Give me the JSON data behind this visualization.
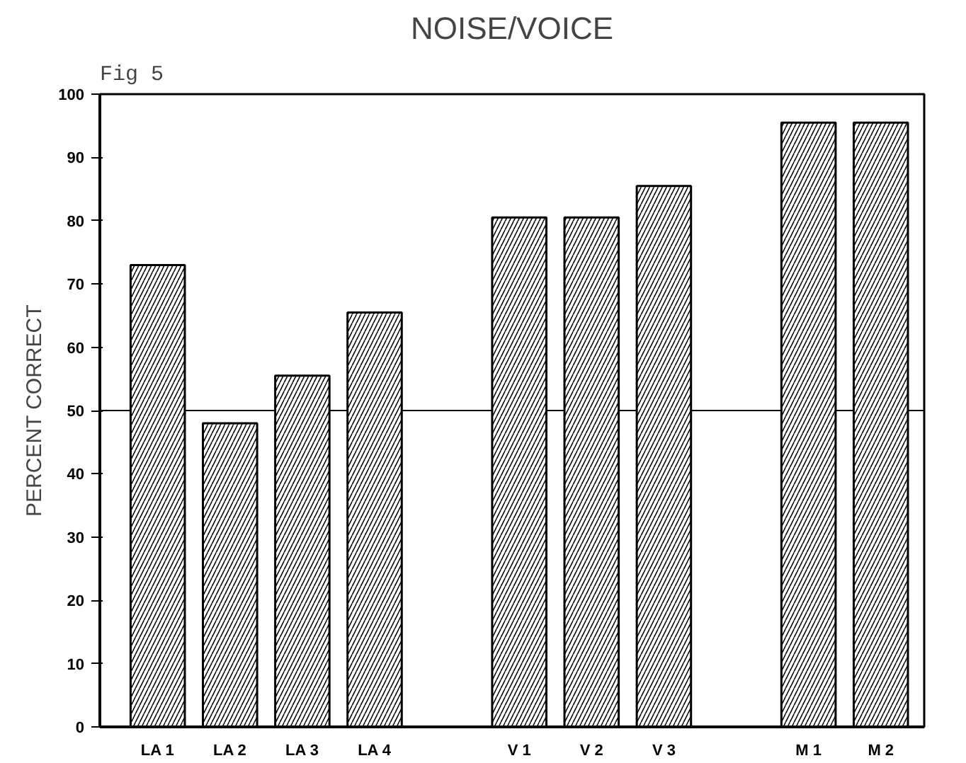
{
  "chart_data": {
    "type": "bar",
    "title": "NOISE/VOICE",
    "ylabel": "PERCENT CORRECT",
    "annotations": [
      "Fig 5"
    ],
    "categories": [
      "LA 1",
      "LA 2",
      "LA 3",
      "LA 4",
      null,
      "V 1",
      "V 2",
      "V 3",
      null,
      "M 1",
      "M 2"
    ],
    "values": [
      73,
      48,
      55.5,
      65.5,
      null,
      80.5,
      80.5,
      85.5,
      null,
      95.5,
      95.5
    ],
    "color": "#000000",
    "ylim": [
      0,
      100
    ],
    "yticks": [
      0,
      10,
      20,
      30,
      40,
      50,
      60,
      70,
      80,
      90,
      100
    ],
    "ref_lines": [
      {
        "axis": "y",
        "value": 50,
        "label": null
      }
    ],
    "grid": false
  }
}
